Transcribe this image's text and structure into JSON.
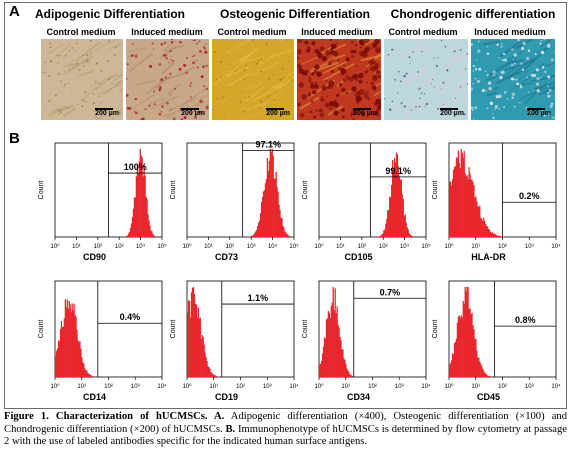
{
  "figure": {
    "panel_a_letter": "A",
    "panel_b_letter": "B",
    "groups": [
      {
        "title": "Adipogenic Differentiation",
        "control": "Control medium",
        "induced": "Induced medium"
      },
      {
        "title": "Osteogenic Differentiation",
        "control": "Control medium",
        "induced": "Induced medium"
      },
      {
        "title": "Chondrogenic differentiation",
        "control": "Control medium",
        "induced": "Induced medium"
      }
    ],
    "scale_label": "200 µm",
    "colors": {
      "adipo_control": "#cdb796",
      "adipo_induced": "#c9a88a",
      "osteo_control": "#d4a62a",
      "osteo_induced": "#c0381f",
      "chondro_control": "#bcd8da",
      "chondro_induced": "#2f9ab0",
      "histogram_fill": "#e8262c"
    }
  },
  "chart_data": [
    {
      "type": "area",
      "marker": "CD90",
      "percent": "100%",
      "ylabel": "Count",
      "peak_log": 4.0,
      "width": 0.22,
      "gate_log": 2.5,
      "gate_y": 0.32,
      "ticks": [
        "10⁰",
        "10¹",
        "10²",
        "10³",
        "10⁴",
        "10⁵"
      ]
    },
    {
      "type": "area",
      "marker": "CD73",
      "percent": "97.1%",
      "ylabel": "Count",
      "peak_log": 3.9,
      "width": 0.3,
      "gate_log": 2.6,
      "gate_y": 0.08,
      "ticks": [
        "10⁰",
        "10¹",
        "10²",
        "10³",
        "10⁴",
        "10⁵"
      ]
    },
    {
      "type": "area",
      "marker": "CD105",
      "percent": "99.1%",
      "ylabel": "Count",
      "peak_log": 3.6,
      "width": 0.25,
      "gate_log": 2.4,
      "gate_y": 0.36,
      "ticks": [
        "10⁰",
        "10¹",
        "10²",
        "10³",
        "10⁴",
        "10⁵"
      ]
    },
    {
      "type": "area",
      "marker": "HLA-DR",
      "percent": "0.2%",
      "ylabel": "Count",
      "peak_log": 0.4,
      "width": 0.5,
      "gate_log": 2.0,
      "gate_y": 0.63,
      "ticks": [
        "10⁰",
        "10¹",
        "10²",
        "10³",
        "10⁴"
      ]
    },
    {
      "type": "area",
      "marker": "CD14",
      "percent": "0.4%",
      "ylabel": "Count",
      "peak_log": 0.5,
      "width": 0.3,
      "gate_log": 1.6,
      "gate_y": 0.44,
      "ticks": [
        "10⁰",
        "10¹",
        "10²",
        "10³",
        "10⁴"
      ]
    },
    {
      "type": "area",
      "marker": "CD19",
      "percent": "1.1%",
      "ylabel": "Count",
      "peak_log": 0.2,
      "width": 0.3,
      "gate_log": 1.3,
      "gate_y": 0.24,
      "ticks": [
        "10⁰",
        "10¹",
        "10²",
        "10³",
        "10⁴"
      ]
    },
    {
      "type": "area",
      "marker": "CD34",
      "percent": "0.7%",
      "ylabel": "Count",
      "peak_log": 0.5,
      "width": 0.25,
      "gate_log": 1.3,
      "gate_y": 0.18,
      "ticks": [
        "10⁰",
        "10¹",
        "10²",
        "10³",
        "10⁴"
      ]
    },
    {
      "type": "area",
      "marker": "CD45",
      "percent": "0.8%",
      "ylabel": "Count",
      "peak_log": 0.6,
      "width": 0.3,
      "gate_log": 1.7,
      "gate_y": 0.47,
      "ticks": [
        "10⁰",
        "10¹",
        "10²",
        "10³",
        "10⁴"
      ]
    }
  ],
  "caption": {
    "lead": "Figure 1. Characterization of hUCMSCs. A.",
    "part1": " Adipogenic differentiation (×400), Osteogenic differentiation (×100) and Chondrogenic differentiation (×200) of hUCMSCs. ",
    "b_label": "B.",
    "part2": " Immunophenotype of hUCMSCs is determined by flow cytometry at passage 2 with the use of labeled antibodies specific for the indicated human surface antigens."
  }
}
